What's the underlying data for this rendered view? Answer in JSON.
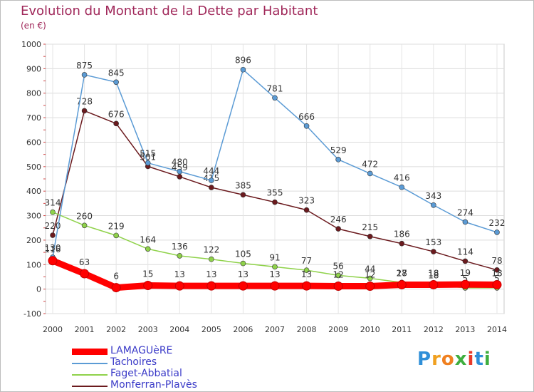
{
  "header": {
    "title": "Evolution du Montant de la Dette par Habitant",
    "subtitle": "(en €)"
  },
  "logo": {
    "text": "Proxiti",
    "letters": [
      "P",
      "r",
      "o",
      "x",
      "i",
      "t",
      "i"
    ],
    "colors": [
      "#2f8fd8",
      "#f0a020",
      "#f08020",
      "#3fae3f",
      "#e83a2a",
      "#2f8fd8",
      "#3fae3f"
    ]
  },
  "chart_data": {
    "type": "line",
    "x": [
      "2000",
      "2001",
      "2002",
      "2003",
      "2004",
      "2005",
      "2006",
      "2007",
      "2008",
      "2009",
      "2010",
      "2011",
      "2012",
      "2013",
      "2014"
    ],
    "ylim": [
      -100,
      1000
    ],
    "yticks": [
      "-100",
      "0",
      "100",
      "200",
      "300",
      "400",
      "500",
      "600",
      "700",
      "800",
      "900",
      "1000"
    ],
    "grid": true,
    "legend_position": "bottom-left",
    "series": [
      {
        "name": "Monferran-Plavès",
        "color": "#6b1a1e",
        "values": [
          220,
          728,
          676,
          501,
          459,
          415,
          385,
          355,
          323,
          246,
          215,
          186,
          153,
          114,
          78
        ],
        "labels": [
          "220",
          "728",
          "676",
          "501",
          "459",
          "415",
          "385",
          "355",
          "323",
          "246",
          "215",
          "186",
          "153",
          "114",
          "78"
        ]
      },
      {
        "name": "Faget-Abbatial",
        "color": "#8fd24a",
        "values": [
          314,
          260,
          219,
          164,
          136,
          122,
          105,
          91,
          77,
          56,
          44,
          27,
          18,
          5,
          5
        ],
        "labels": [
          "314",
          "260",
          "219",
          "164",
          "136",
          "122",
          "105",
          "91",
          "77",
          "56",
          "44",
          "27",
          "18",
          "5",
          "5"
        ]
      },
      {
        "name": "Tachoires",
        "color": "#5b9bd5",
        "values": [
          130,
          875,
          845,
          515,
          480,
          444,
          896,
          781,
          666,
          529,
          472,
          416,
          343,
          274,
          232
        ],
        "labels": [
          "130",
          "875",
          "845",
          "515",
          "480",
          "444",
          "896",
          "781",
          "666",
          "529",
          "472",
          "416",
          "343",
          "274",
          "232"
        ]
      },
      {
        "name": "LAMAGUèRE",
        "color": "#ff0000",
        "values": [
          116,
          63,
          6,
          15,
          13,
          13,
          13,
          13,
          13,
          12,
          12,
          18,
          18,
          19,
          18
        ],
        "labels": [
          "116",
          "63",
          "6",
          "15",
          "13",
          "13",
          "13",
          "13",
          "13",
          "12",
          "12",
          "18",
          "18",
          "19",
          "18"
        ]
      }
    ]
  },
  "legend": [
    {
      "label": "LAMAGUèRE",
      "color": "#ff0000"
    },
    {
      "label": "Tachoires",
      "color": "#5b9bd5"
    },
    {
      "label": "Faget-Abbatial",
      "color": "#8fd24a"
    },
    {
      "label": "Monferran-Plavès",
      "color": "#6b1a1e"
    }
  ]
}
